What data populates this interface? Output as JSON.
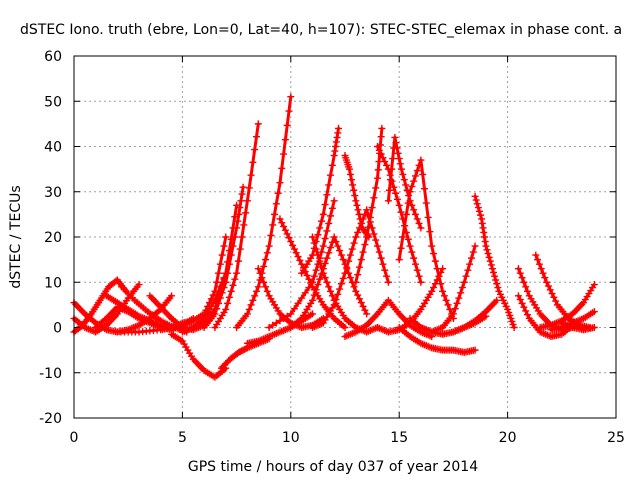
{
  "chart_data": {
    "type": "scatter",
    "title": "dSTEC Iono. truth (ebre, Lon=0, Lat=40, h=107): STEC-STEC_elemax in phase cont. a",
    "xlabel": "GPS time / hours of day 037 of year 2014",
    "ylabel": "dSTEC  / TECUs",
    "xlim": [
      0,
      25
    ],
    "ylim": [
      -20,
      60
    ],
    "xticks": [
      0,
      5,
      10,
      15,
      20,
      25
    ],
    "yticks": [
      -20,
      -10,
      0,
      10,
      20,
      30,
      40,
      50,
      60
    ],
    "grid": true,
    "marker": "plus",
    "color": "#ff0000",
    "series": [
      {
        "x": [
          0.0,
          0.5,
          1.0,
          1.5,
          2.0,
          2.5,
          3.0,
          3.5,
          4.0,
          4.5
        ],
        "y": [
          5.5,
          3.0,
          1.0,
          -0.5,
          -1.0,
          -0.5,
          0.5,
          2.0,
          4.0,
          7.0
        ]
      },
      {
        "x": [
          0.0,
          0.4,
          0.8,
          1.2,
          1.6,
          2.0,
          2.4
        ],
        "y": [
          -1.0,
          0.5,
          3.0,
          6.0,
          9.0,
          10.5,
          8.0
        ]
      },
      {
        "x": [
          0.0,
          0.5,
          1.0,
          1.5,
          2.0,
          2.5,
          3.0
        ],
        "y": [
          2.0,
          0.0,
          -1.0,
          0.5,
          3.0,
          6.5,
          9.5
        ]
      },
      {
        "x": [
          1.0,
          1.5,
          2.0,
          2.5,
          3.0,
          3.5,
          4.0,
          4.5,
          5.0
        ],
        "y": [
          0.0,
          2.0,
          4.5,
          3.5,
          2.0,
          1.0,
          0.0,
          -0.5,
          1.0
        ]
      },
      {
        "x": [
          1.5,
          2.0,
          2.5,
          3.0,
          3.5,
          4.0,
          4.5,
          5.0,
          5.5
        ],
        "y": [
          7.0,
          5.5,
          4.0,
          2.5,
          1.5,
          0.5,
          0.0,
          0.5,
          2.0
        ]
      },
      {
        "x": [
          2.2,
          2.8,
          3.4,
          4.0,
          4.6,
          5.2
        ],
        "y": [
          9.0,
          6.0,
          3.5,
          1.5,
          0.0,
          -1.0
        ]
      },
      {
        "x": [
          3.5,
          4.0,
          4.5,
          5.0,
          5.5,
          6.0
        ],
        "y": [
          7.0,
          4.5,
          2.0,
          0.0,
          -0.5,
          0.5
        ]
      },
      {
        "x": [
          2.0,
          3.0,
          4.0,
          4.5,
          5.0,
          5.5
        ],
        "y": [
          -1.0,
          -1.0,
          -0.5,
          0.0,
          0.5,
          1.5
        ]
      },
      {
        "x": [
          4.5,
          5.0,
          5.5,
          6.0,
          6.5,
          7.0
        ],
        "y": [
          -1.5,
          -3.0,
          -7.0,
          -9.5,
          -11.0,
          -9.0
        ]
      },
      {
        "x": [
          5.0,
          5.5,
          6.0,
          6.5,
          7.0
        ],
        "y": [
          -1.0,
          0.0,
          2.0,
          6.0,
          12.0
        ]
      },
      {
        "x": [
          5.0,
          5.5,
          6.0,
          6.5,
          7.0
        ],
        "y": [
          1.0,
          1.5,
          3.0,
          8.0,
          20.0
        ]
      },
      {
        "x": [
          5.5,
          6.0,
          6.5,
          7.0,
          7.5
        ],
        "y": [
          0.0,
          1.0,
          4.0,
          12.0,
          27.0
        ]
      },
      {
        "x": [
          6.0,
          6.5,
          7.0,
          7.5,
          7.8
        ],
        "y": [
          0.0,
          3.0,
          10.0,
          22.0,
          31.0
        ]
      },
      {
        "x": [
          6.5,
          7.0,
          7.5,
          8.0,
          8.5
        ],
        "y": [
          0.0,
          4.0,
          12.0,
          28.0,
          45.0
        ]
      },
      {
        "x": [
          6.8,
          7.2,
          7.6,
          8.0,
          8.5,
          9.0
        ],
        "y": [
          -9.0,
          -7.0,
          -5.5,
          -4.5,
          -3.5,
          -2.5
        ]
      },
      {
        "x": [
          8.0,
          8.5,
          9.0,
          9.5,
          10.0,
          10.5,
          11.0
        ],
        "y": [
          -3.5,
          -3.0,
          -2.0,
          -1.0,
          0.0,
          1.5,
          3.0
        ]
      },
      {
        "x": [
          7.5,
          8.0,
          8.5,
          9.0,
          9.5,
          10.0
        ],
        "y": [
          0.0,
          3.0,
          9.0,
          18.0,
          32.0,
          51.0
        ]
      },
      {
        "x": [
          8.5,
          9.0,
          9.5,
          10.0,
          10.5,
          11.0,
          11.5
        ],
        "y": [
          13.0,
          7.0,
          3.0,
          1.0,
          0.0,
          0.5,
          2.0
        ]
      },
      {
        "x": [
          9.5,
          10.0,
          10.5,
          11.0,
          11.5,
          12.0,
          12.5
        ],
        "y": [
          24.0,
          19.0,
          14.0,
          9.0,
          5.0,
          2.0,
          0.0
        ]
      },
      {
        "x": [
          9.0,
          10.0,
          11.0,
          11.5,
          12.0
        ],
        "y": [
          0.0,
          3.0,
          10.0,
          18.0,
          28.0
        ]
      },
      {
        "x": [
          10.0,
          10.5,
          11.0,
          11.5,
          12.0,
          12.5,
          13.0,
          13.5
        ],
        "y": [
          0.0,
          2.0,
          6.0,
          13.0,
          20.0,
          14.0,
          8.0,
          3.0
        ]
      },
      {
        "x": [
          11.0,
          11.5,
          12.0,
          12.5,
          13.0,
          13.5,
          14.0,
          14.5
        ],
        "y": [
          0.0,
          1.0,
          5.0,
          12.0,
          20.0,
          26.0,
          18.0,
          10.0
        ]
      },
      {
        "x": [
          10.5,
          11.0,
          11.5,
          12.0,
          12.2
        ],
        "y": [
          12.0,
          16.0,
          25.0,
          38.0,
          44.0
        ]
      },
      {
        "x": [
          11.0,
          11.5,
          12.0,
          12.5,
          13.0,
          13.5,
          14.0
        ],
        "y": [
          20.0,
          12.0,
          6.0,
          2.0,
          0.0,
          -1.0,
          0.0
        ]
      },
      {
        "x": [
          12.5,
          12.7,
          13.0,
          13.3,
          13.6
        ],
        "y": [
          38.0,
          35.0,
          28.0,
          22.0,
          20.0
        ]
      },
      {
        "x": [
          12.5,
          13.0,
          13.5,
          14.0,
          14.5,
          15.0,
          15.5,
          16.0,
          16.5
        ],
        "y": [
          -2.0,
          -1.0,
          0.5,
          3.0,
          6.0,
          3.0,
          0.5,
          -1.0,
          -2.0
        ]
      },
      {
        "x": [
          13.0,
          13.5,
          14.0,
          14.2
        ],
        "y": [
          10.0,
          20.0,
          33.0,
          44.0
        ]
      },
      {
        "x": [
          14.0,
          14.5,
          15.0,
          15.5,
          16.0
        ],
        "y": [
          40.0,
          35.0,
          27.0,
          18.0,
          10.0
        ]
      },
      {
        "x": [
          14.0,
          14.5,
          15.0,
          15.5,
          16.0,
          16.5,
          17.0
        ],
        "y": [
          0.0,
          -1.0,
          -0.5,
          1.0,
          4.0,
          8.0,
          13.0
        ]
      },
      {
        "x": [
          14.5,
          14.8,
          15.1,
          15.5,
          16.0
        ],
        "y": [
          28.0,
          42.0,
          35.0,
          28.0,
          22.0
        ]
      },
      {
        "x": [
          15.0,
          15.5,
          16.0,
          16.5,
          17.0,
          17.5
        ],
        "y": [
          15.0,
          30.0,
          37.0,
          18.0,
          8.0,
          2.0
        ]
      },
      {
        "x": [
          15.0,
          15.5,
          16.0,
          16.5,
          17.0,
          17.5,
          18.0,
          18.5
        ],
        "y": [
          0.0,
          -2.0,
          -3.5,
          -4.5,
          -5.0,
          -5.0,
          -5.5,
          -5.0
        ]
      },
      {
        "x": [
          15.5,
          16.0,
          16.5,
          17.0,
          17.5,
          18.0,
          18.5
        ],
        "y": [
          2.0,
          0.0,
          -1.0,
          0.0,
          3.0,
          10.0,
          18.0
        ]
      },
      {
        "x": [
          16.0,
          16.5,
          17.0,
          17.5,
          18.0,
          18.5,
          19.0
        ],
        "y": [
          0.0,
          -1.0,
          -1.5,
          -1.0,
          0.0,
          1.0,
          2.5
        ]
      },
      {
        "x": [
          18.5,
          18.8,
          19.0,
          19.3,
          19.6,
          20.0,
          20.3
        ],
        "y": [
          29.0,
          24.0,
          18.0,
          13.0,
          8.0,
          4.0,
          0.0
        ]
      },
      {
        "x": [
          17.5,
          18.0,
          18.5,
          19.0,
          19.5
        ],
        "y": [
          -1.0,
          0.0,
          1.5,
          3.5,
          6.0
        ]
      },
      {
        "x": [
          20.5,
          21.0,
          21.5,
          22.0,
          22.5,
          23.0
        ],
        "y": [
          13.0,
          7.0,
          3.0,
          0.5,
          -0.5,
          0.0
        ]
      },
      {
        "x": [
          20.5,
          21.0,
          21.5,
          22.0,
          22.5,
          23.0
        ],
        "y": [
          7.0,
          2.0,
          -1.0,
          -2.0,
          -1.5,
          0.5
        ]
      },
      {
        "x": [
          21.3,
          21.8,
          22.3,
          22.8,
          23.3,
          23.8
        ],
        "y": [
          16.0,
          10.0,
          5.0,
          2.0,
          0.5,
          0.0
        ]
      },
      {
        "x": [
          21.5,
          22.0,
          22.5,
          23.0,
          23.5,
          24.0
        ],
        "y": [
          0.0,
          0.5,
          1.5,
          3.0,
          5.5,
          9.5
        ]
      },
      {
        "x": [
          22.0,
          22.5,
          23.0,
          23.5,
          24.0
        ],
        "y": [
          -0.5,
          0.0,
          1.0,
          2.0,
          3.5
        ]
      },
      {
        "x": [
          22.5,
          23.0,
          23.5,
          24.0
        ],
        "y": [
          1.0,
          0.0,
          -0.5,
          0.0
        ]
      }
    ]
  }
}
